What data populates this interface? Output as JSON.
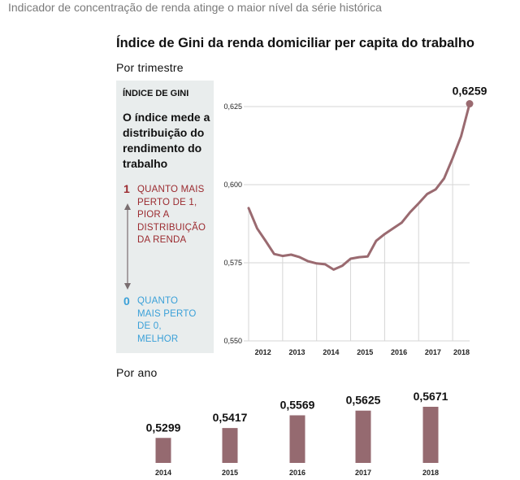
{
  "headline": "Indicador de concentração de renda atinge o maior nível da série histórica",
  "legend": {
    "heading": "ÍNDICE DE GINI",
    "description": "O índice mede a distribuição do rendimento do trabalho",
    "one_value": "1",
    "one_note": "QUANTO MAIS PERTO DE 1, PIOR A DISTRIBUIÇÃO DA RENDA",
    "zero_value": "0",
    "zero_note": "QUANTO MAIS PERTO DE 0, MELHOR"
  },
  "colors": {
    "series": "#9a6a70",
    "bar": "#956a70",
    "legend_bg": "#e9eded",
    "one_accent": "#9b2a2f",
    "zero_accent": "#3aa0d8",
    "gridline": "#d6d6d6"
  },
  "chart_data": [
    {
      "type": "line",
      "title": "Índice de Gini da renda domiciliar per capita do trabalho",
      "subtitle": "Por trimestre",
      "xlabel": "",
      "ylabel": "",
      "x": [
        "2012-1",
        "2012-2",
        "2012-3",
        "2012-4",
        "2013-1",
        "2013-2",
        "2013-3",
        "2013-4",
        "2014-1",
        "2014-2",
        "2014-3",
        "2014-4",
        "2015-1",
        "2015-2",
        "2015-3",
        "2015-4",
        "2016-1",
        "2016-2",
        "2016-3",
        "2016-4",
        "2017-1",
        "2017-2",
        "2017-3",
        "2017-4",
        "2018-1",
        "2018-2",
        "2018-3"
      ],
      "x_tick_labels": [
        "2012",
        "2013",
        "2014",
        "2015",
        "2016",
        "2017",
        "2018"
      ],
      "values": [
        0.5925,
        0.586,
        0.582,
        0.5778,
        0.5772,
        0.5776,
        0.5768,
        0.5755,
        0.5748,
        0.5745,
        0.5728,
        0.574,
        0.5763,
        0.5768,
        0.577,
        0.582,
        0.5842,
        0.586,
        0.5878,
        0.5912,
        0.594,
        0.597,
        0.5985,
        0.602,
        0.6085,
        0.6155,
        0.6259
      ],
      "ylim": [
        0.55,
        0.625
      ],
      "y_ticks": [
        "0,550",
        "0,575",
        "0,600",
        "0,625"
      ],
      "end_label": "0,6259",
      "grid": true
    },
    {
      "type": "bar",
      "subtitle": "Por ano",
      "categories": [
        "2014",
        "2015",
        "2016",
        "2017",
        "2018"
      ],
      "values": [
        0.5299,
        0.5417,
        0.5569,
        0.5625,
        0.5671
      ],
      "value_labels": [
        "0,5299",
        "0,5417",
        "0,5569",
        "0,5625",
        "0,5671"
      ]
    }
  ]
}
